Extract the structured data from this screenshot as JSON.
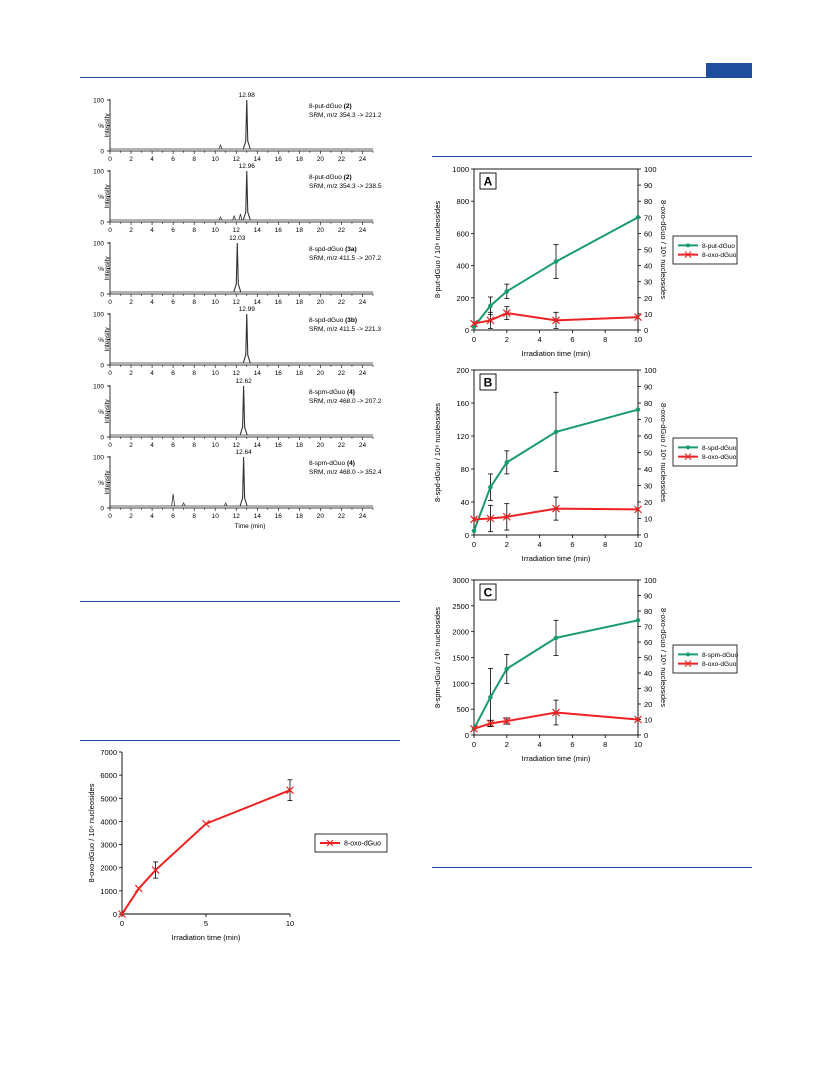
{
  "colors": {
    "rule": "#1f4e9c",
    "green": "#1a9b6c",
    "red": "#ee2222",
    "trace": "#333333"
  },
  "chromatograms": {
    "y_axis_label": "Intensity",
    "y_ticks": [
      "100",
      "%",
      "0"
    ],
    "x_ticks": [
      "0",
      "2",
      "4",
      "6",
      "8",
      "10",
      "12",
      "14",
      "16",
      "18",
      "20",
      "22",
      "24"
    ],
    "x_label": "Time (min)",
    "x_range": [
      0,
      25
    ],
    "panels": [
      {
        "peak_label": "12.98",
        "peak_time": 13.0,
        "compound": "8-put-dGuo",
        "compound_id": "(2)",
        "srm": "SRM, m/z 354.3 -> 221.2",
        "minor": [
          {
            "t": 10.5,
            "h": 4
          }
        ]
      },
      {
        "peak_label": "12.96",
        "peak_time": 13.0,
        "compound": "8-put-dGuo",
        "compound_id": "(2)",
        "srm": "SRM, m/z 354.3 -> 238.5",
        "minor": [
          {
            "t": 10.5,
            "h": 3
          },
          {
            "t": 11.8,
            "h": 4
          },
          {
            "t": 12.4,
            "h": 6
          }
        ]
      },
      {
        "peak_label": "12.03",
        "peak_time": 12.1,
        "compound": "8-spd-dGuo",
        "compound_id": "(3a)",
        "srm": "SRM, m/z 411.5 -> 207.2",
        "minor": []
      },
      {
        "peak_label": "12.99",
        "peak_time": 13.0,
        "compound": "8-spd-dGuo",
        "compound_id": "(3b)",
        "srm": "SRM, m/z 411.5 -> 221.3",
        "minor": []
      },
      {
        "peak_label": "12.62",
        "peak_time": 12.7,
        "compound": "8-spm-dGuo",
        "compound_id": "(4)",
        "srm": "SRM, m/z 468.0 -> 207.2",
        "minor": []
      },
      {
        "peak_label": "12.64",
        "peak_time": 12.7,
        "compound": "8-spm-dGuo",
        "compound_id": "(4)",
        "srm": "SRM, m/z 468.0 -> 352.4",
        "minor": [
          {
            "t": 6.0,
            "h": 12
          },
          {
            "t": 7.0,
            "h": 3
          },
          {
            "t": 11.0,
            "h": 3
          }
        ]
      }
    ]
  },
  "chart_data": [
    {
      "type": "line",
      "x_label": "Irradiation time (min)",
      "y_label": "8-oxo-dGuo  / 10⁶ nucleosides",
      "x_ticks": [
        "0",
        "5",
        "10"
      ],
      "y_ticks": [
        "0",
        "1000",
        "2000",
        "3000",
        "4000",
        "5000",
        "6000",
        "7000"
      ],
      "xlim": [
        0,
        10
      ],
      "ylim": [
        0,
        7000
      ],
      "series": [
        {
          "name": "8-oxo-dGuo",
          "x": [
            0,
            1,
            2,
            5,
            10
          ],
          "y": [
            0,
            1100,
            1900,
            3900,
            5350
          ],
          "err": [
            0,
            0,
            350,
            0,
            450
          ]
        }
      ]
    },
    {
      "type": "line",
      "panel": "A",
      "x_label": "Irradiation time (min)",
      "y_label": "8-put-dGuo  / 10⁶ nucleosides",
      "y2_label": "8-oxo-dGuo  / 10⁶ nucleosides",
      "x_ticks": [
        "0",
        "2",
        "4",
        "6",
        "8",
        "10"
      ],
      "y_ticks": [
        "0",
        "200",
        "400",
        "600",
        "800",
        "1000"
      ],
      "y2_ticks": [
        "0",
        "10",
        "20",
        "30",
        "40",
        "50",
        "60",
        "70",
        "80",
        "90",
        "100"
      ],
      "xlim": [
        0,
        10
      ],
      "ylim": [
        0,
        1000
      ],
      "y2lim": [
        0,
        100
      ],
      "series": [
        {
          "name": "8-put-dGuo",
          "x": [
            0,
            1,
            2,
            5,
            10
          ],
          "y": [
            20,
            150,
            240,
            425,
            700
          ],
          "err": [
            0,
            55,
            45,
            105,
            0
          ]
        },
        {
          "name": "8-oxo-dGuo",
          "x": [
            0,
            1,
            2,
            5,
            10
          ],
          "y": [
            4,
            6,
            10.5,
            6,
            8
          ],
          "err": [
            0,
            5,
            4,
            5,
            0
          ]
        }
      ]
    },
    {
      "type": "line",
      "panel": "B",
      "x_label": "Irradiation time (min)",
      "y_label": "8-spd-dGuo  / 10⁶ nucleosides",
      "y2_label": "8-oxo-dGuo  / 10⁶ nucleosides",
      "x_ticks": [
        "0",
        "2",
        "4",
        "6",
        "8",
        "10"
      ],
      "y_ticks": [
        "0",
        "40",
        "80",
        "120",
        "160",
        "200"
      ],
      "y2_ticks": [
        "0",
        "10",
        "20",
        "30",
        "40",
        "50",
        "60",
        "70",
        "80",
        "90",
        "100"
      ],
      "xlim": [
        0,
        10
      ],
      "ylim": [
        0,
        200
      ],
      "y2lim": [
        0,
        100
      ],
      "series": [
        {
          "name": "8-spd-dGuo",
          "x": [
            0,
            1,
            2,
            5,
            10
          ],
          "y": [
            5,
            58,
            88,
            125,
            152
          ],
          "err": [
            0,
            16,
            14,
            48,
            0
          ]
        },
        {
          "name": "8-oxo-dGuo",
          "x": [
            0,
            1,
            2,
            5,
            10
          ],
          "y": [
            9.5,
            10,
            11,
            16,
            15.5
          ],
          "err": [
            0,
            8,
            8,
            7,
            0
          ]
        }
      ]
    },
    {
      "type": "line",
      "panel": "C",
      "x_label": "Irradiation time (min)",
      "y_label": "8-spm-dGuo  / 10⁶ nucleosides",
      "y2_label": "8-oxo-dGuo  / 10⁶ nucleosides",
      "x_ticks": [
        "0",
        "2",
        "4",
        "6",
        "8",
        "10"
      ],
      "y_ticks": [
        "0",
        "500",
        "1000",
        "1500",
        "2000",
        "2500",
        "3000"
      ],
      "y2_ticks": [
        "0",
        "10",
        "20",
        "30",
        "40",
        "50",
        "60",
        "70",
        "80",
        "90",
        "100"
      ],
      "xlim": [
        0,
        10
      ],
      "ylim": [
        0,
        3000
      ],
      "y2lim": [
        0,
        100
      ],
      "series": [
        {
          "name": "8-spm-dGuo",
          "x": [
            0,
            1,
            2,
            5,
            10
          ],
          "y": [
            120,
            730,
            1280,
            1880,
            2220
          ],
          "err": [
            0,
            560,
            280,
            340,
            0
          ]
        },
        {
          "name": "8-oxo-dGuo",
          "x": [
            0,
            1,
            2,
            5,
            10
          ],
          "y": [
            4,
            7.5,
            9,
            14.5,
            10
          ],
          "err": [
            0,
            2,
            2,
            8,
            0
          ]
        }
      ]
    }
  ]
}
